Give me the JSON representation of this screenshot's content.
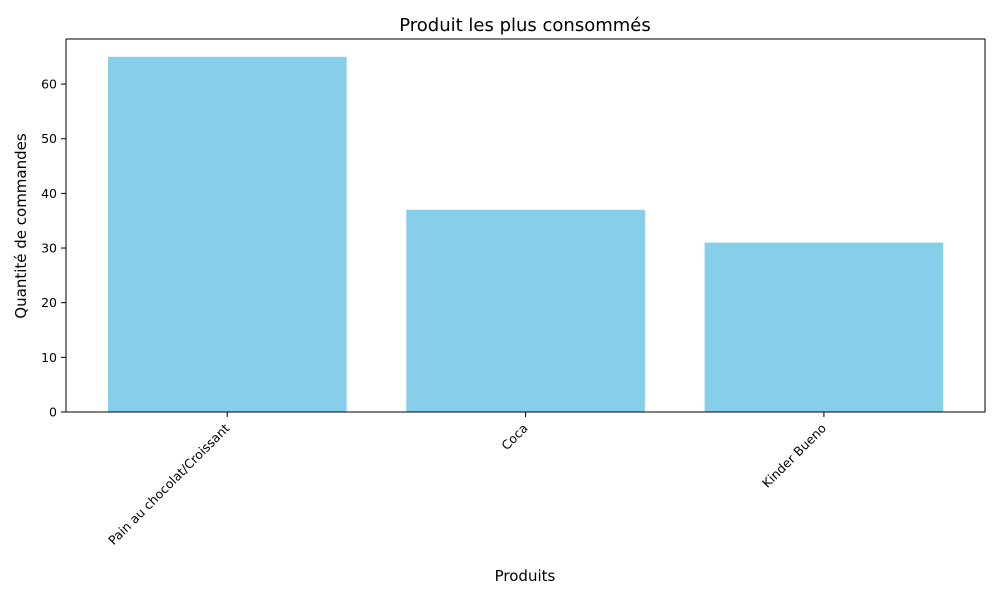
{
  "chart_data": {
    "type": "bar",
    "title": "Produit les plus consommés",
    "xlabel": "Produits",
    "ylabel": "Quantité de commandes",
    "categories": [
      "Pain au chocolat/Croissant",
      "Coca",
      "Kinder Bueno"
    ],
    "values": [
      65,
      37,
      31
    ],
    "ylim": [
      0,
      68.25
    ],
    "yticks": [
      0,
      10,
      20,
      30,
      40,
      50,
      60
    ],
    "bar_color": "#87CEEB",
    "grid": false,
    "legend": "none"
  }
}
